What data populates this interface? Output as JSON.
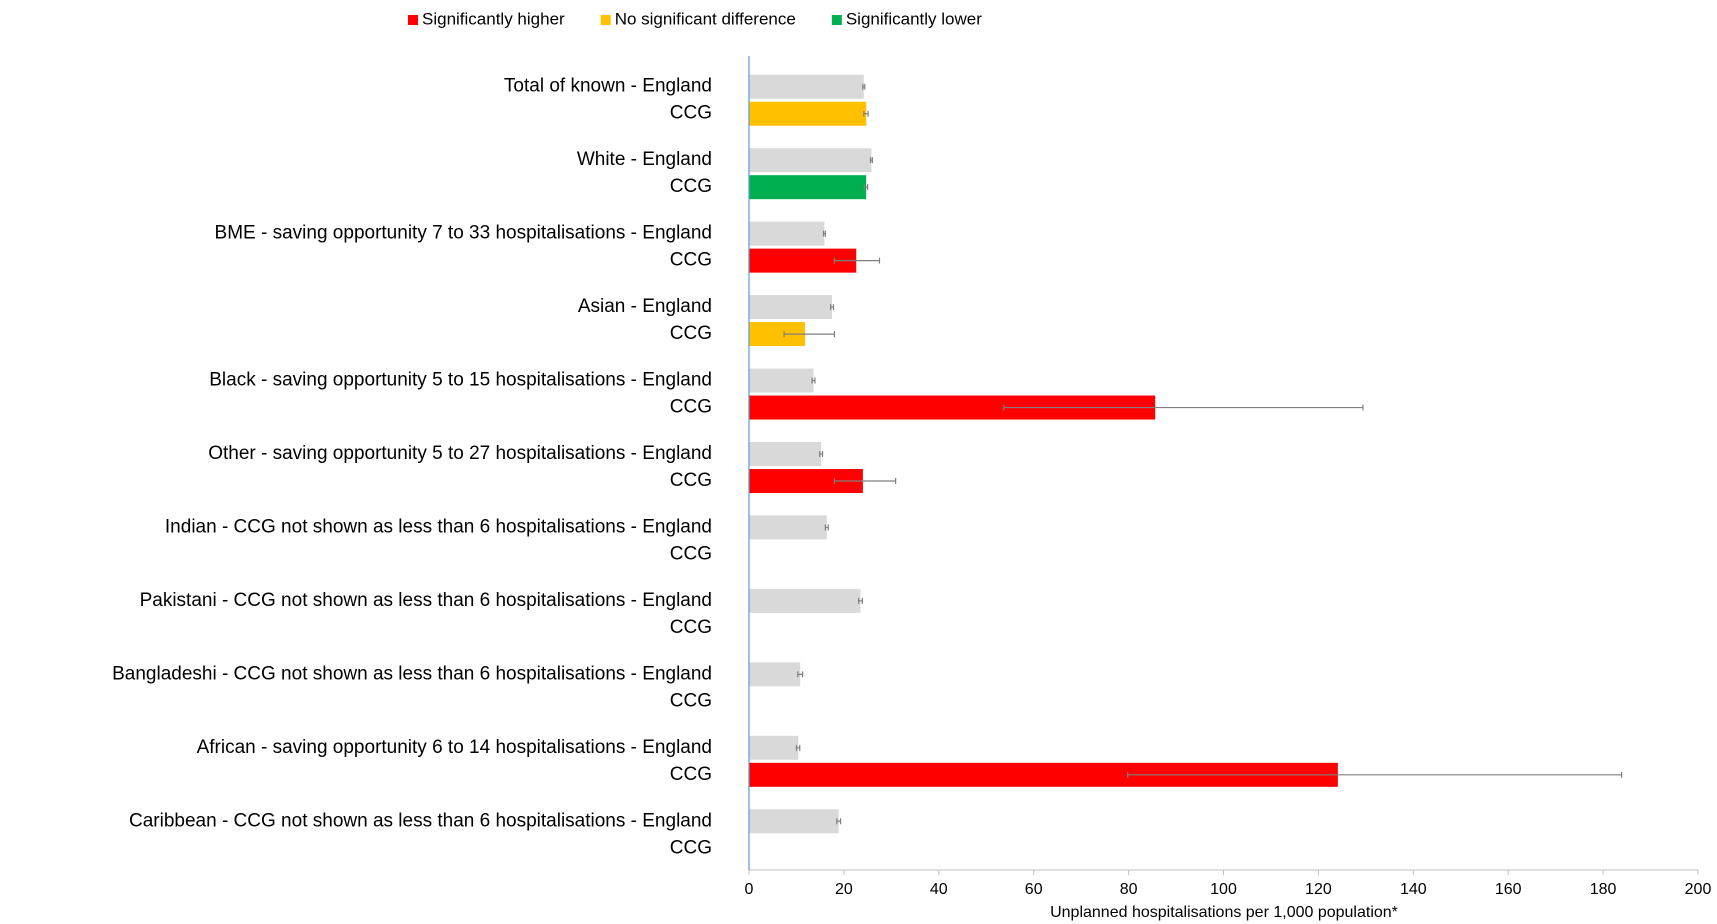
{
  "chart_data": {
    "type": "bar",
    "orientation": "horizontal",
    "categories": [
      "Total of known - England",
      "White - England",
      "BME - saving opportunity 7 to 33 hospitalisations - England",
      "Asian - England",
      "Black - saving opportunity 5 to 15 hospitalisations - England",
      "Other - saving opportunity 5 to 27 hospitalisations - England",
      "Indian - CCG not shown as less than 6 hospitalisations - England",
      "Pakistani - CCG not shown as less than 6 hospitalisations - England",
      "Bangladeshi - CCG not shown as less than 6 hospitalisations - England",
      "African - saving opportunity 6 to 14 hospitalisations - England",
      "Caribbean - CCG not shown as less than 6 hospitalisations - England"
    ],
    "sub_categories": [
      "CCG",
      "CCG",
      "CCG",
      "CCG",
      "CCG",
      "CCG",
      "CCG",
      "CCG",
      "CCG",
      "CCG",
      "CCG"
    ],
    "series": [
      {
        "color": "#d9d9d9",
        "values": [
          24.2,
          25.8,
          15.9,
          17.5,
          13.6,
          15.2,
          16.4,
          23.5,
          10.8,
          10.4,
          18.9
        ],
        "ci_low": [
          24.0,
          25.6,
          15.7,
          17.2,
          13.3,
          14.9,
          16.1,
          23.1,
          10.3,
          10.0,
          18.5
        ],
        "ci_high": [
          24.4,
          26.0,
          16.1,
          17.8,
          13.9,
          15.5,
          16.7,
          23.9,
          11.3,
          10.7,
          19.3
        ]
      },
      {
        "values": [
          24.7,
          24.7,
          22.6,
          11.8,
          85.6,
          24.0,
          null,
          null,
          null,
          124.1,
          null
        ],
        "ci_low": [
          24.2,
          24.3,
          18.0,
          7.4,
          53.7,
          18.0,
          null,
          null,
          null,
          79.8,
          null
        ],
        "ci_high": [
          25.1,
          25.0,
          27.5,
          18.0,
          129.4,
          30.9,
          null,
          null,
          null,
          183.9,
          null
        ],
        "significance": [
          1,
          2,
          0,
          1,
          0,
          0,
          null,
          null,
          null,
          0,
          null
        ]
      }
    ],
    "legend": [
      {
        "name": "Significantly higher",
        "color": "#ff0000"
      },
      {
        "name": "No significant difference",
        "color": "#ffc000"
      },
      {
        "name": "Significantly lower",
        "color": "#00b050"
      }
    ],
    "xlabel": "Unplanned  hospitalisations per 1,000 population*",
    "xlim": [
      0,
      200
    ],
    "xticks": [
      0,
      20,
      40,
      60,
      80,
      100,
      120,
      140,
      160,
      180,
      200
    ],
    "error_color": "#7f7f7f",
    "axis_color": "#5b9bd5"
  }
}
